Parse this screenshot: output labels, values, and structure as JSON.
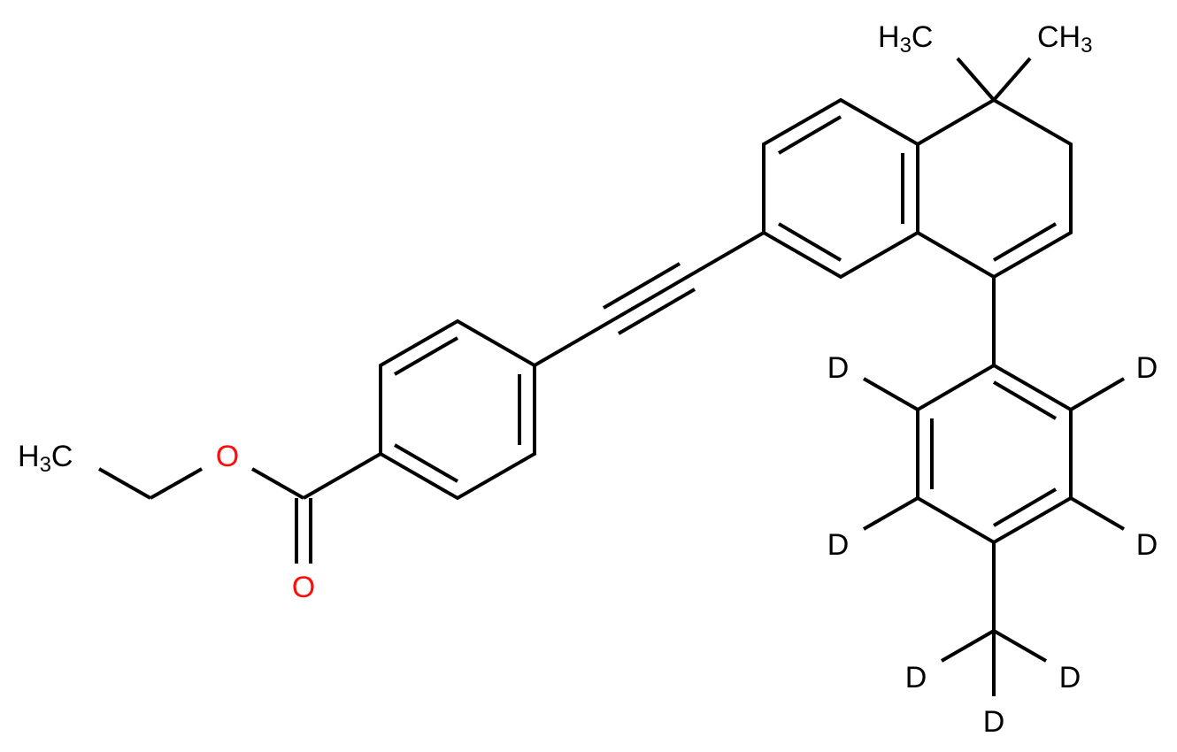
{
  "molecule": {
    "atom_colors": {
      "carbon": "#000000",
      "oxygen": "#ff0d0d",
      "deuterium": "#000000"
    },
    "labels": {
      "ethyl_ch3": {
        "main": "H",
        "sub": "3",
        "tail": "C"
      },
      "ester_o": "O",
      "carbonyl_o": "O",
      "methyl_left": {
        "main": "H",
        "sub": "3",
        "tail": "C"
      },
      "methyl_right": {
        "main": "CH",
        "sub": "3"
      },
      "d_upper_left": "D",
      "d_upper_right": "D",
      "d_lower_left": "D",
      "d_lower_right": "D",
      "cd3_left": "D",
      "cd3_right": "D",
      "cd3_bottom": "D"
    }
  }
}
